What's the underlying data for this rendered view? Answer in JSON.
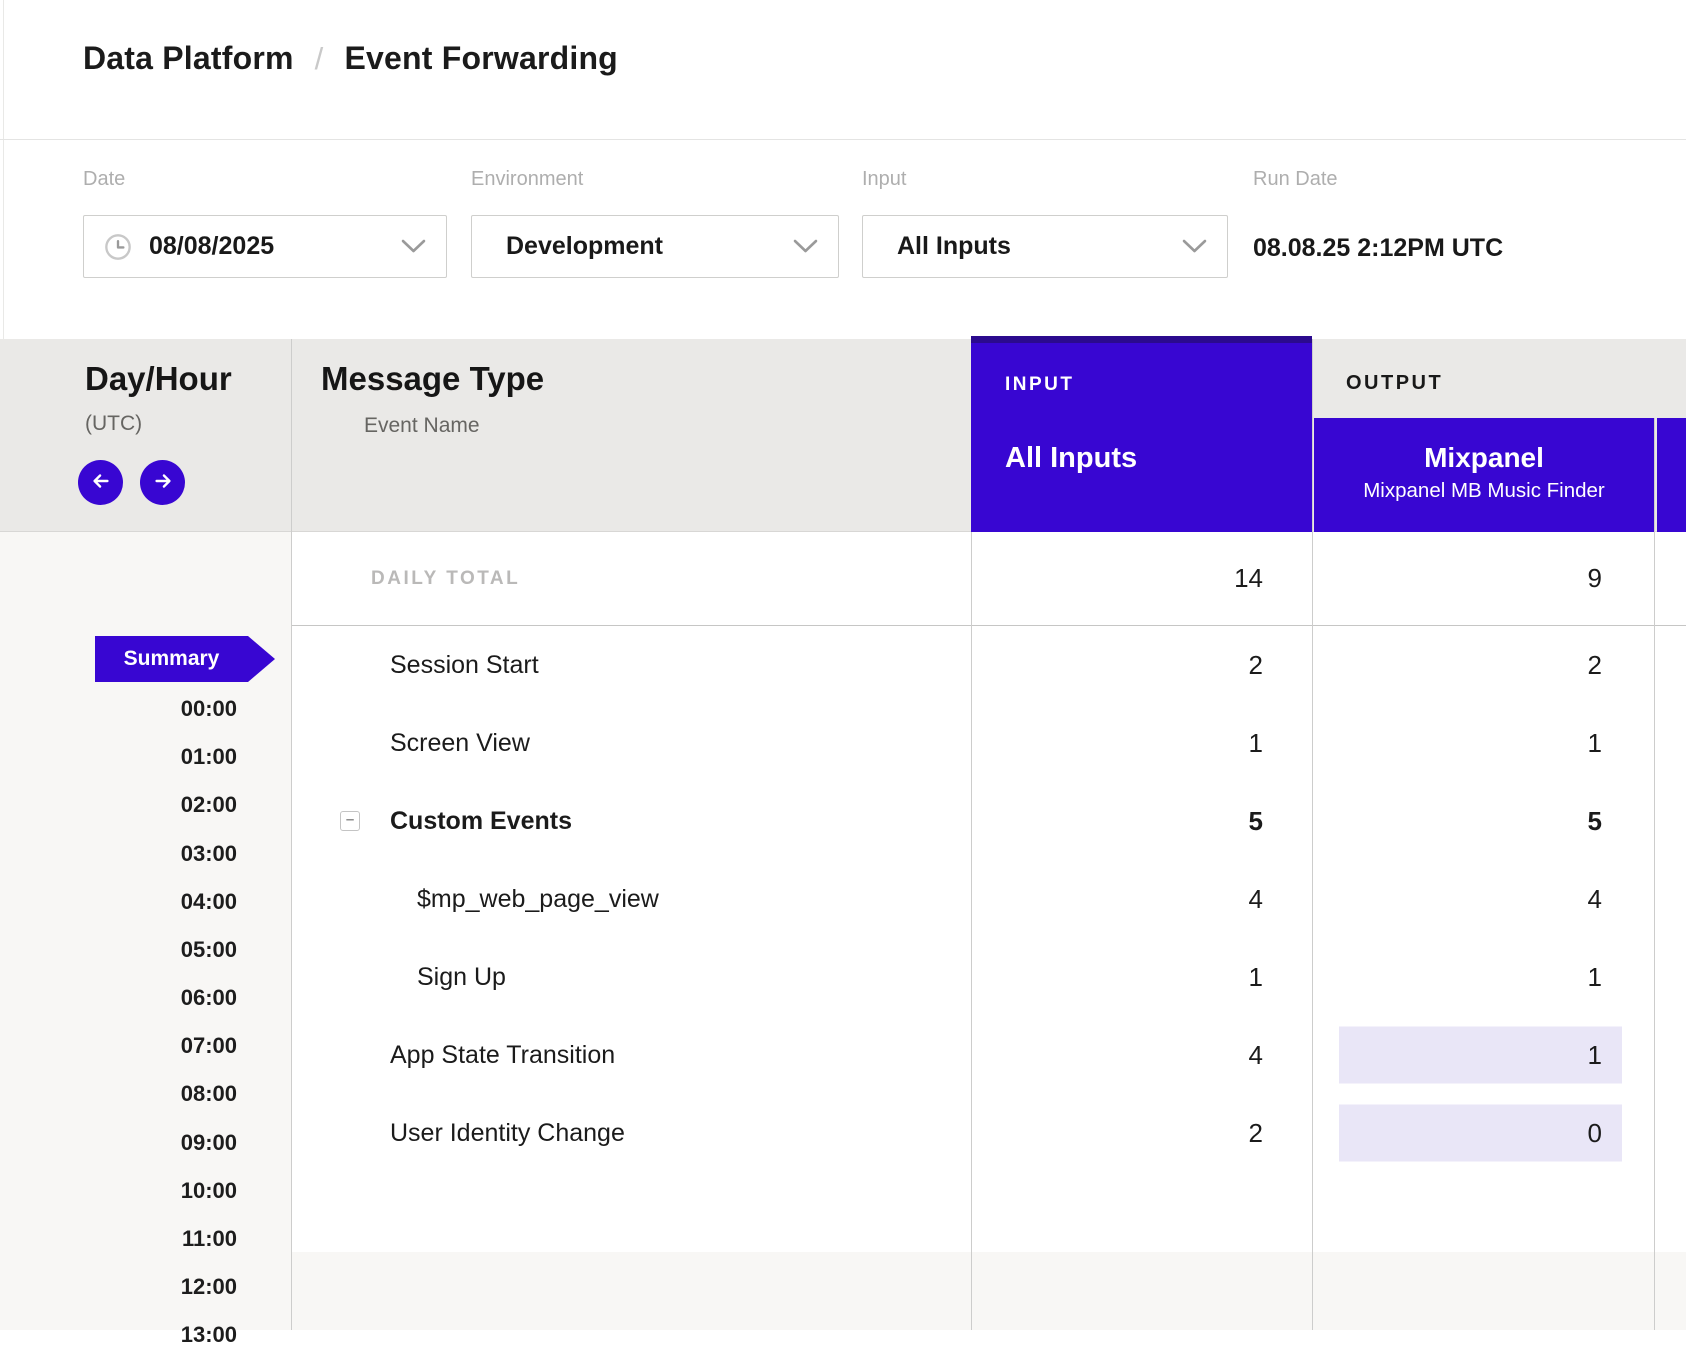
{
  "breadcrumb": {
    "items": [
      "Data Platform",
      "Event Forwarding"
    ],
    "separator": "/"
  },
  "filters": {
    "date": {
      "label": "Date",
      "value": "08/08/2025",
      "icon": "clock-icon"
    },
    "environment": {
      "label": "Environment",
      "value": "Development"
    },
    "input": {
      "label": "Input",
      "value": "All Inputs"
    },
    "run_date": {
      "label": "Run Date",
      "value": "08.08.25 2:12PM UTC"
    }
  },
  "table": {
    "day_hour": {
      "title": "Day/Hour",
      "subtitle": "(UTC)",
      "prev_icon": "arrow-left-icon",
      "next_icon": "arrow-right-icon"
    },
    "message_type": {
      "title": "Message Type",
      "subtitle": "Event Name"
    },
    "input_group": {
      "label": "INPUT",
      "column": "All Inputs"
    },
    "output_group": {
      "label": "OUTPUT",
      "column_title": "Mixpanel",
      "column_subtitle": "Mixpanel MB Music Finder"
    },
    "daily_total": {
      "label": "DAILY TOTAL",
      "input": "14",
      "output": "9"
    },
    "rows": [
      {
        "label": "Session Start",
        "indent": 0,
        "bold": false,
        "collapse_icon": false,
        "input": "2",
        "output": "2",
        "output_highlight": false
      },
      {
        "label": "Screen View",
        "indent": 0,
        "bold": false,
        "collapse_icon": false,
        "input": "1",
        "output": "1",
        "output_highlight": false
      },
      {
        "label": "Custom Events",
        "indent": 0,
        "bold": true,
        "collapse_icon": true,
        "input": "5",
        "output": "5",
        "output_highlight": false
      },
      {
        "label": "$mp_web_page_view",
        "indent": 1,
        "bold": false,
        "collapse_icon": false,
        "input": "4",
        "output": "4",
        "output_highlight": false
      },
      {
        "label": "Sign Up",
        "indent": 1,
        "bold": false,
        "collapse_icon": false,
        "input": "1",
        "output": "1",
        "output_highlight": false
      },
      {
        "label": "App State Transition",
        "indent": 0,
        "bold": false,
        "collapse_icon": false,
        "input": "4",
        "output": "1",
        "output_highlight": true
      },
      {
        "label": "User Identity Change",
        "indent": 0,
        "bold": false,
        "collapse_icon": false,
        "input": "2",
        "output": "0",
        "output_highlight": true
      }
    ]
  },
  "sidebar": {
    "summary_label": "Summary",
    "hours": [
      "00:00",
      "01:00",
      "02:00",
      "03:00",
      "04:00",
      "05:00",
      "06:00",
      "07:00",
      "08:00",
      "09:00",
      "10:00",
      "11:00",
      "12:00",
      "13:00"
    ]
  },
  "colors": {
    "purple": "#3806d2",
    "purple_dark": "#2b0a8e",
    "highlight": "#e9e6f7"
  }
}
